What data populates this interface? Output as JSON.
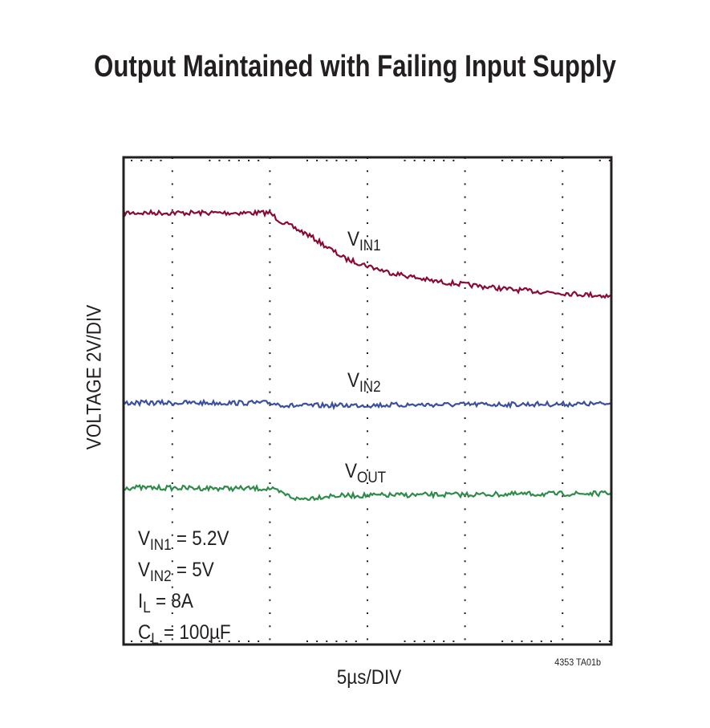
{
  "chart_data": {
    "type": "line",
    "title": "Output Maintained with Failing Input Supply",
    "xlabel": "5µs/DIV",
    "ylabel": "VOLTAGE 2V/DIV",
    "figure_code": "4353 TA01b",
    "x_units": "µs",
    "xlim": [
      0,
      50
    ],
    "y_units": "divisions",
    "ylim": [
      0,
      10
    ],
    "grid": true,
    "series": [
      {
        "name": "VIN1",
        "label_main": "V",
        "label_sub": "IN1",
        "color": "#8b0a32",
        "x": [
          0,
          15,
          16,
          19,
          22.7,
          27,
          31.7,
          40,
          50
        ],
        "y": [
          8.86,
          8.86,
          8.7,
          8.4,
          7.92,
          7.65,
          7.46,
          7.28,
          7.15
        ]
      },
      {
        "name": "VIN2",
        "label_main": "V",
        "label_sub": "IN2",
        "color": "#3b4fa0",
        "x": [
          0,
          15,
          17,
          30,
          50
        ],
        "y": [
          4.96,
          4.96,
          4.9,
          4.92,
          4.94
        ]
      },
      {
        "name": "VOUT",
        "label_main": "V",
        "label_sub": "OUT",
        "color": "#2e8b4a",
        "x": [
          0,
          15,
          17.9,
          21,
          30,
          50
        ],
        "y": [
          3.22,
          3.2,
          2.98,
          3.05,
          3.07,
          3.1
        ]
      }
    ],
    "conditions": [
      {
        "main": "V",
        "sub": "IN1",
        "rest": " = 5.2V"
      },
      {
        "main": "V",
        "sub": "IN2",
        "rest": " = 5V"
      },
      {
        "main": "I",
        "sub": "L",
        "rest": " = 8A"
      },
      {
        "main": "C",
        "sub": "L",
        "rest": " = 100µF"
      }
    ]
  }
}
